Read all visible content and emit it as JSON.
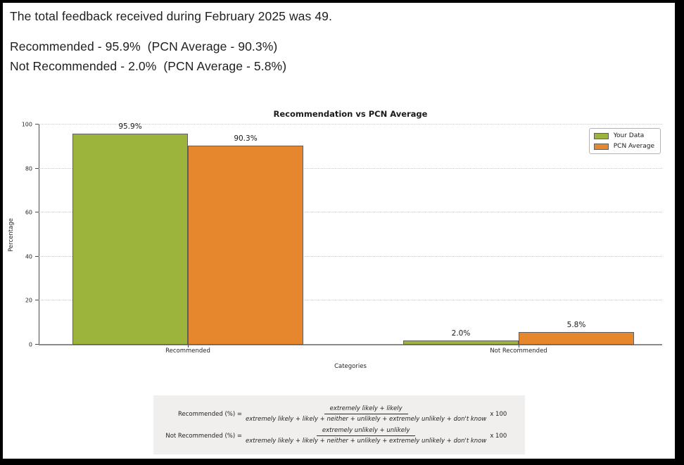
{
  "header": {
    "line1": "The total feedback received during February 2025 was 49.",
    "line2": "Recommended - 95.9%  (PCN Average - 90.3%)",
    "line3": "Not Recommended - 2.0%  (PCN Average - 5.8%)"
  },
  "chart_data": {
    "type": "bar",
    "title": "Recommendation vs PCN Average",
    "categories": [
      "Recommended",
      "Not Recommended"
    ],
    "series": [
      {
        "name": "Your Data",
        "color": "#9cb33c",
        "values": [
          95.9,
          2.0
        ],
        "labels": [
          "95.9%",
          "2.0%"
        ]
      },
      {
        "name": "PCN Average",
        "color": "#e6862d",
        "values": [
          90.3,
          5.8
        ],
        "labels": [
          "90.3%",
          "5.8%"
        ]
      }
    ],
    "xlabel": "Categories",
    "ylabel": "Percentage",
    "ylim": [
      0,
      100
    ],
    "yticks": [
      0,
      20,
      40,
      60,
      80,
      100
    ],
    "grid": "horizontal-dotted",
    "legend_position": "upper right"
  },
  "formulas": [
    {
      "label": "Recommended (%) =",
      "numerator": "extremely likely + likely",
      "denominator": "extremely likely + likely + neither + unlikely + extremely unlikely + don't know",
      "suffix": "x 100"
    },
    {
      "label": "Not Recommended (%) =",
      "numerator": "extremely unlikely + unlikely",
      "denominator": "extremely likely + likely + neither + unlikely + extremely unlikely + don't know",
      "suffix": "x 100"
    }
  ]
}
